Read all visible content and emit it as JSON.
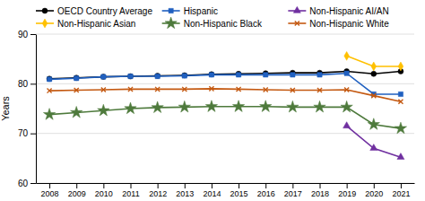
{
  "chart_data": {
    "type": "line",
    "y_label": "Years",
    "x": [
      2008,
      2009,
      2010,
      2011,
      2012,
      2013,
      2014,
      2015,
      2016,
      2017,
      2018,
      2019,
      2020,
      2021
    ],
    "xlim": [
      2007.5,
      2021.5
    ],
    "xticks": [
      2008,
      2009,
      2010,
      2011,
      2012,
      2013,
      2014,
      2015,
      2016,
      2017,
      2018,
      2019,
      2020,
      2021
    ],
    "ylim": [
      60,
      90
    ],
    "yticks": [
      60,
      70,
      80,
      90
    ],
    "grid": true,
    "legend": "top",
    "series": [
      {
        "name": "OECD Country Average",
        "color": "#000000",
        "marker": "circle",
        "line_style": "solid",
        "values": [
          81.0,
          81.2,
          81.4,
          81.5,
          81.6,
          81.7,
          81.9,
          82.0,
          82.1,
          82.2,
          82.2,
          82.5,
          82.0,
          82.5
        ]
      },
      {
        "name": "Hispanic",
        "color": "#2060c0",
        "marker": "square",
        "line_style": "solid",
        "values": [
          80.9,
          81.1,
          81.4,
          81.5,
          81.5,
          81.6,
          81.8,
          81.8,
          81.8,
          81.8,
          81.8,
          82.1,
          77.9,
          77.9
        ]
      },
      {
        "name": "Non-Hispanic AI/AN",
        "color": "#7030a0",
        "marker": "triangle",
        "line_style": "solid",
        "values": [
          null,
          null,
          null,
          null,
          null,
          null,
          null,
          null,
          null,
          null,
          null,
          71.5,
          67.0,
          65.2
        ]
      },
      {
        "name": "Non-Hispanic Asian",
        "color": "#ffc000",
        "marker": "diamond",
        "line_style": "solid",
        "values": [
          null,
          null,
          null,
          null,
          null,
          null,
          null,
          null,
          null,
          null,
          null,
          85.6,
          83.5,
          83.5
        ]
      },
      {
        "name": "Non-Hispanic Black",
        "color": "#4e7a3c",
        "marker": "star",
        "line_style": "solid",
        "values": [
          73.8,
          74.2,
          74.6,
          75.0,
          75.2,
          75.3,
          75.4,
          75.4,
          75.4,
          75.3,
          75.3,
          75.3,
          71.8,
          71.0
        ]
      },
      {
        "name": "Non-Hispanic White",
        "color": "#c45911",
        "marker": "cross",
        "line_style": "solid",
        "values": [
          78.6,
          78.7,
          78.8,
          78.9,
          78.9,
          78.9,
          79.0,
          78.9,
          78.8,
          78.7,
          78.7,
          78.8,
          77.6,
          76.4
        ]
      }
    ]
  }
}
